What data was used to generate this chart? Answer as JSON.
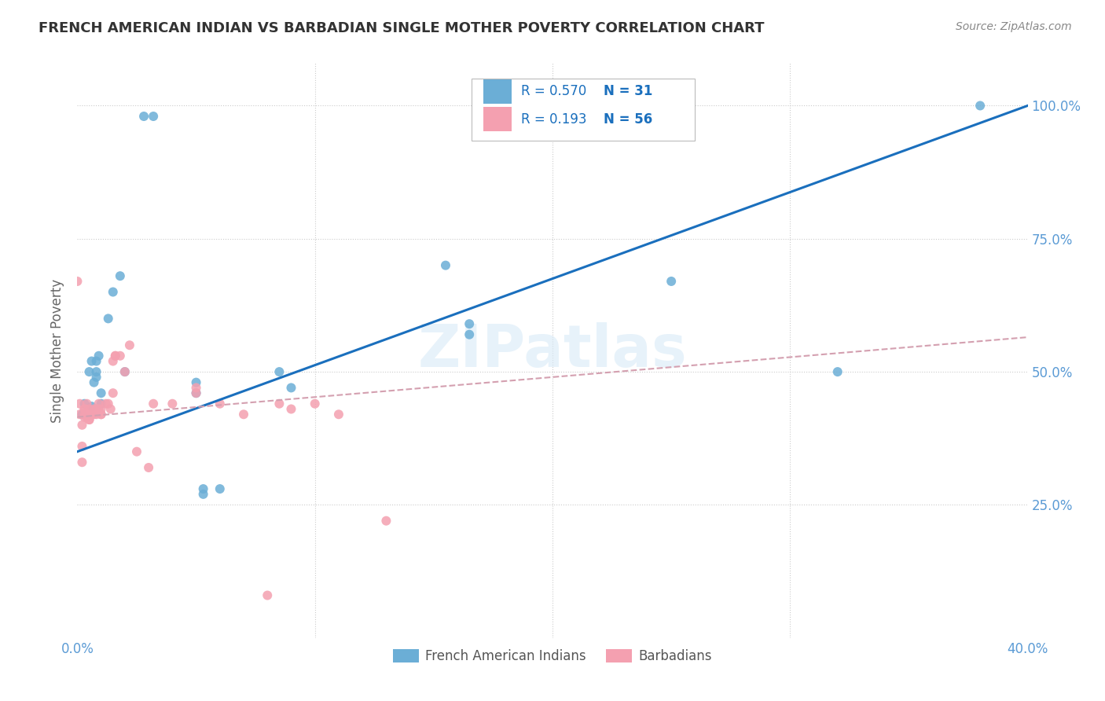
{
  "title": "FRENCH AMERICAN INDIAN VS BARBADIAN SINGLE MOTHER POVERTY CORRELATION CHART",
  "source": "Source: ZipAtlas.com",
  "ylabel": "Single Mother Poverty",
  "legend_labels": [
    "French American Indians",
    "Barbadians"
  ],
  "watermark": "ZIPatlas",
  "blue_color": "#6baed6",
  "pink_color": "#f4a0b0",
  "blue_line_color": "#1a6fbd",
  "pink_line_color": "#d4a0b0",
  "title_color": "#333333",
  "axis_label_color": "#5b9bd5",
  "legend_text_color": "#1a6fbd",
  "background_color": "#ffffff",
  "blue_scatter_x": [
    0.028,
    0.032,
    0.002,
    0.003,
    0.005,
    0.006,
    0.006,
    0.007,
    0.008,
    0.008,
    0.008,
    0.009,
    0.01,
    0.01,
    0.013,
    0.015,
    0.018,
    0.02,
    0.085,
    0.09,
    0.155,
    0.165,
    0.165,
    0.25,
    0.05,
    0.05,
    0.053,
    0.053,
    0.06,
    0.32,
    0.38
  ],
  "blue_scatter_y": [
    0.98,
    0.98,
    0.42,
    0.44,
    0.5,
    0.52,
    0.435,
    0.48,
    0.49,
    0.5,
    0.52,
    0.53,
    0.44,
    0.46,
    0.6,
    0.65,
    0.68,
    0.5,
    0.5,
    0.47,
    0.7,
    0.57,
    0.59,
    0.67,
    0.46,
    0.48,
    0.27,
    0.28,
    0.28,
    0.5,
    1.0
  ],
  "pink_scatter_x": [
    0.0,
    0.001,
    0.001,
    0.002,
    0.002,
    0.002,
    0.003,
    0.003,
    0.003,
    0.003,
    0.004,
    0.004,
    0.004,
    0.004,
    0.005,
    0.005,
    0.005,
    0.005,
    0.006,
    0.006,
    0.006,
    0.007,
    0.007,
    0.007,
    0.008,
    0.008,
    0.008,
    0.009,
    0.009,
    0.01,
    0.01,
    0.01,
    0.012,
    0.013,
    0.014,
    0.015,
    0.015,
    0.016,
    0.016,
    0.018,
    0.02,
    0.022,
    0.025,
    0.03,
    0.032,
    0.04,
    0.05,
    0.05,
    0.06,
    0.07,
    0.08,
    0.085,
    0.09,
    0.1,
    0.11,
    0.13
  ],
  "pink_scatter_y": [
    0.67,
    0.42,
    0.44,
    0.33,
    0.36,
    0.4,
    0.42,
    0.415,
    0.43,
    0.43,
    0.415,
    0.42,
    0.42,
    0.44,
    0.41,
    0.41,
    0.42,
    0.43,
    0.42,
    0.42,
    0.42,
    0.42,
    0.425,
    0.43,
    0.42,
    0.43,
    0.43,
    0.43,
    0.44,
    0.42,
    0.42,
    0.43,
    0.44,
    0.44,
    0.43,
    0.46,
    0.52,
    0.53,
    0.53,
    0.53,
    0.5,
    0.55,
    0.35,
    0.32,
    0.44,
    0.44,
    0.46,
    0.47,
    0.44,
    0.42,
    0.08,
    0.44,
    0.43,
    0.44,
    0.42,
    0.22
  ],
  "blue_trendline_x": [
    0.0,
    0.4
  ],
  "blue_trendline_y": [
    0.35,
    1.0
  ],
  "pink_trendline_x": [
    0.0,
    0.4
  ],
  "pink_trendline_y": [
    0.415,
    0.565
  ],
  "xlim": [
    0.0,
    0.4
  ],
  "ylim": [
    0.0,
    1.08
  ],
  "ytick_positions": [
    0.25,
    0.5,
    0.75,
    1.0
  ],
  "ytick_labels": [
    "25.0%",
    "50.0%",
    "75.0%",
    "100.0%"
  ],
  "xtick_positions": [
    0.0,
    0.1,
    0.2,
    0.3,
    0.4
  ],
  "xtick_labels": [
    "0.0%",
    "",
    "",
    "",
    "40.0%"
  ]
}
